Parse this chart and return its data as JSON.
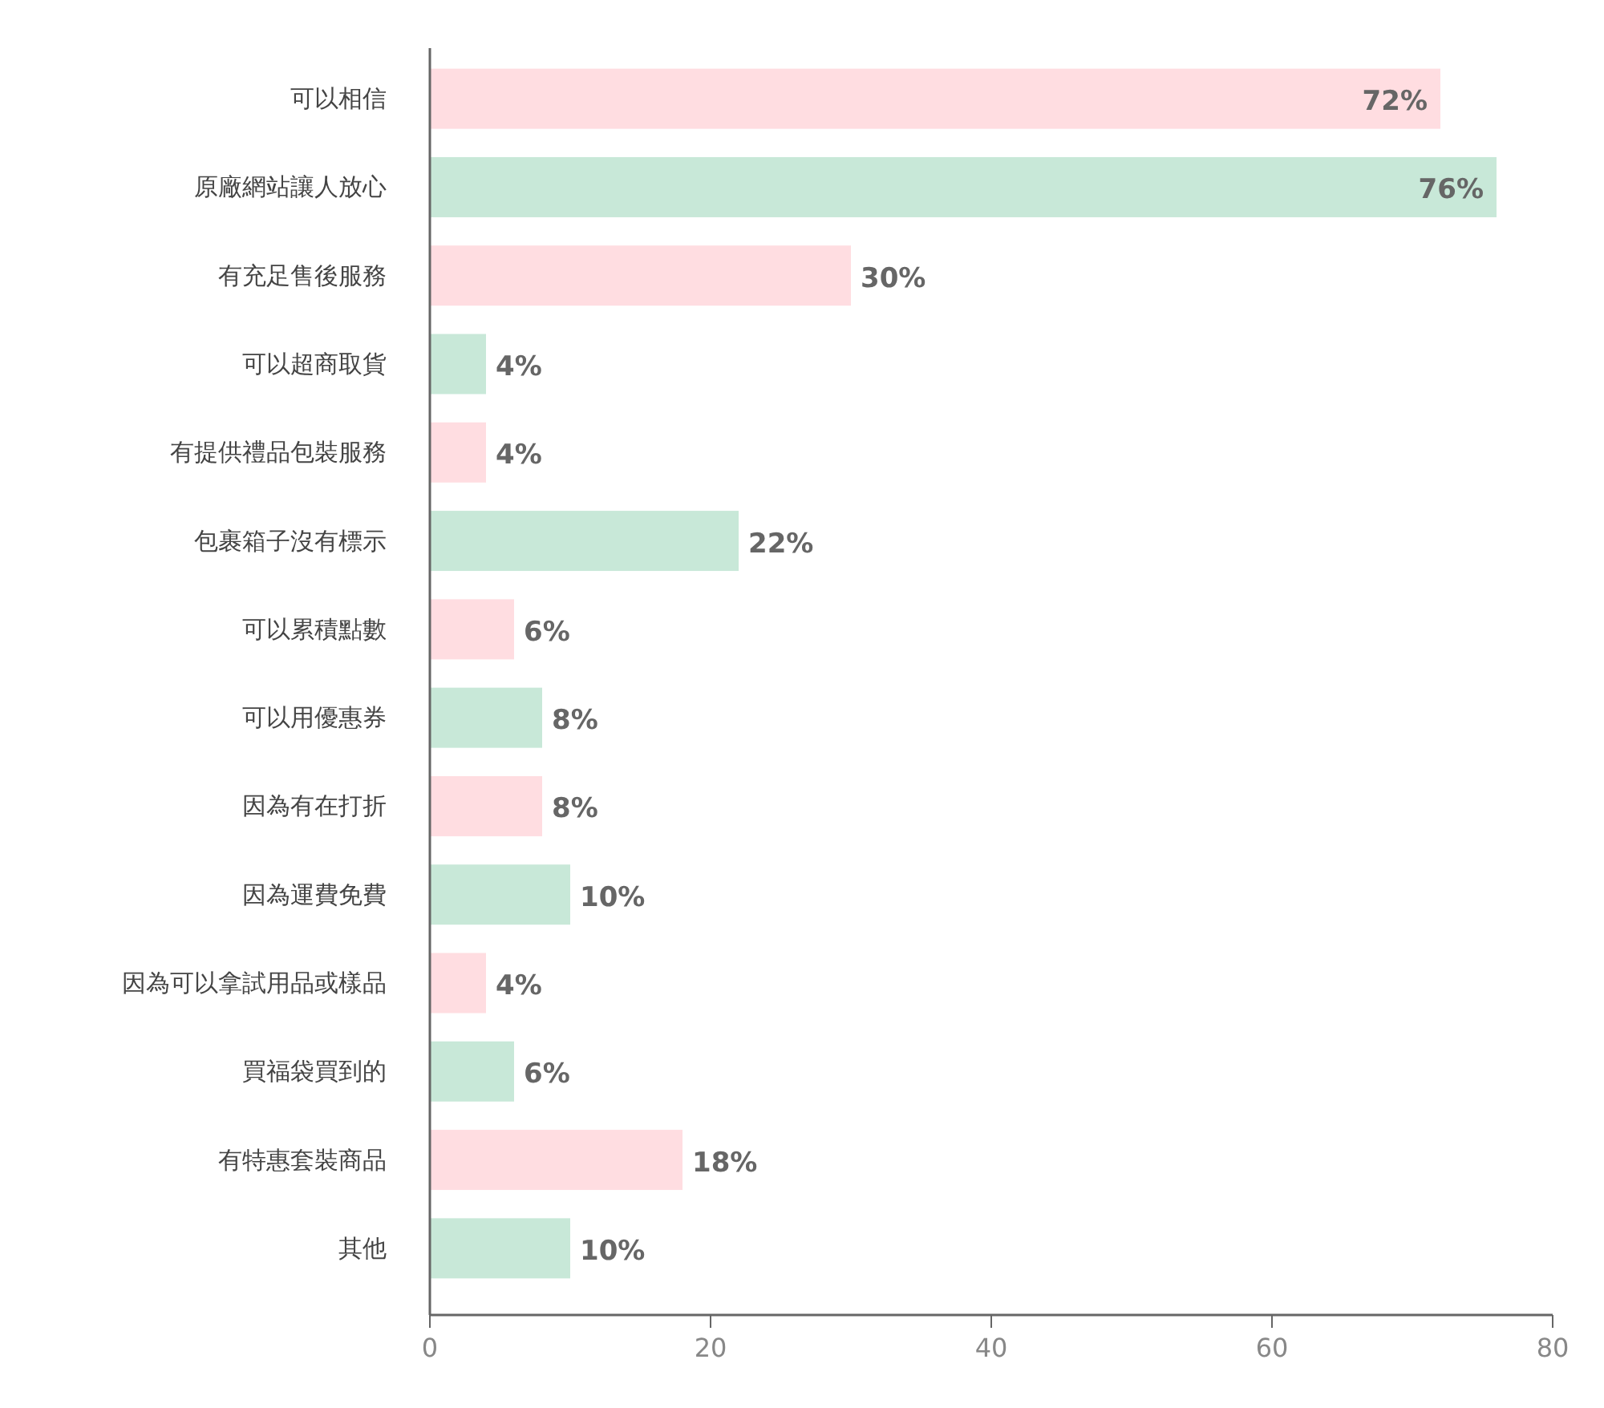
{
  "chart_data": {
    "type": "bar",
    "orientation": "horizontal",
    "categories": [
      "可以相信",
      "原廠網站讓人放心",
      "有充足售後服務",
      "可以超商取貨",
      "有提供禮品包裝服務",
      "包裹箱子沒有標示",
      "可以累積點數",
      "可以用優惠券",
      "因為有在打折",
      "因為運費免費",
      "因為可以拿試用品或樣品",
      "買福袋買到的",
      "有特惠套裝商品",
      "其他"
    ],
    "values": [
      72,
      76,
      30,
      4,
      4,
      22,
      6,
      8,
      8,
      10,
      4,
      6,
      18,
      10
    ],
    "value_labels": [
      "72%",
      "76%",
      "30%",
      "4%",
      "4%",
      "22%",
      "6%",
      "8%",
      "8%",
      "10%",
      "4%",
      "6%",
      "18%",
      "10%"
    ],
    "colors": [
      "#ffdde1",
      "#c8e8d8",
      "#ffdde1",
      "#c8e8d8",
      "#ffdde1",
      "#c8e8d8",
      "#ffdde1",
      "#c8e8d8",
      "#ffdde1",
      "#c8e8d8",
      "#ffdde1",
      "#c8e8d8",
      "#ffdde1",
      "#c8e8d8"
    ],
    "xlim": [
      0,
      80
    ],
    "xticks": [
      0,
      20,
      40,
      60,
      80
    ],
    "grid": false
  }
}
